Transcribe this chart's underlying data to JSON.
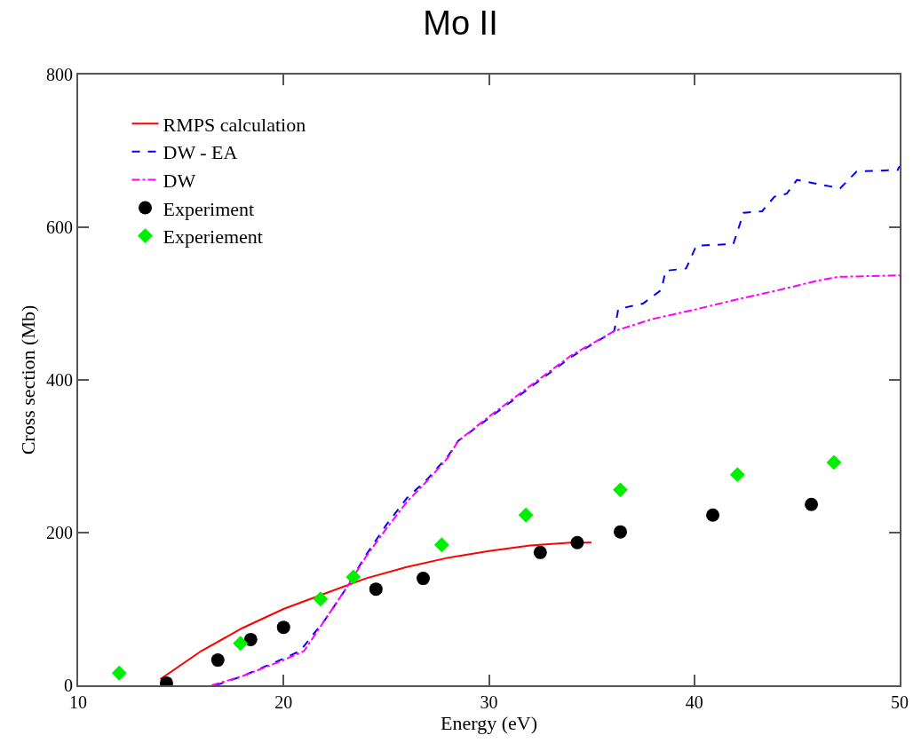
{
  "chart_data": {
    "type": "line",
    "title": "Mo II",
    "xlabel": "Energy (eV)",
    "ylabel": "Cross section (Mb)",
    "xlim": [
      10,
      50
    ],
    "xticks": [
      10,
      20,
      30,
      40,
      50
    ],
    "ylim": [
      0,
      800
    ],
    "yticks": [
      0,
      200,
      400,
      600,
      800
    ],
    "grid": false,
    "legend": "top left",
    "series": [
      {
        "name": "RMPS calculation",
        "color": "#ff0000",
        "line_style": "solid",
        "marker": "none",
        "x": [
          14,
          16,
          18,
          20,
          22,
          24,
          26,
          28,
          30,
          32,
          34,
          35
        ],
        "values": [
          8,
          45,
          75,
          100,
          120,
          140,
          155,
          167,
          176,
          183,
          187,
          187
        ]
      },
      {
        "name": "DW - EA",
        "color": "#0000ff",
        "line_style": "dashed",
        "marker": "none",
        "x": [
          16.7,
          18,
          20,
          20.8,
          22,
          23,
          24,
          25,
          26,
          27,
          28,
          28.5,
          30,
          32,
          34,
          36.1,
          36.3,
          37.5,
          37.8,
          38.4,
          38.6,
          39.6,
          40.1,
          41.9,
          42.4,
          43.3,
          43.9,
          44.5,
          45,
          47.1,
          47.9,
          49.9,
          50
        ],
        "values": [
          0,
          12,
          35,
          45,
          85,
          125,
          170,
          210,
          245,
          270,
          300,
          320,
          350,
          390,
          430,
          464,
          493,
          500,
          506,
          518,
          543,
          546,
          576,
          578,
          619,
          621,
          640,
          644,
          662,
          651,
          673,
          675,
          680
        ]
      },
      {
        "name": "DW",
        "color": "#ff00ff",
        "line_style": "dashdot",
        "marker": "none",
        "x": [
          16.5,
          18,
          20,
          21,
          22,
          23,
          24,
          25,
          26,
          27,
          28,
          28.5,
          30,
          32,
          34,
          36.1,
          38,
          40,
          42,
          44,
          46,
          47,
          50
        ],
        "values": [
          0,
          12,
          33,
          45,
          85,
          125,
          168,
          205,
          240,
          268,
          298,
          320,
          352,
          392,
          432,
          464,
          480,
          492,
          505,
          517,
          530,
          535,
          537
        ]
      },
      {
        "name": "Experiment",
        "type": "scatter",
        "color": "#000000",
        "marker": "circle",
        "x": [
          14.3,
          16.8,
          18.4,
          20.0,
          24.5,
          26.8,
          32.5,
          34.3,
          36.4,
          40.9,
          45.7
        ],
        "values": [
          3,
          33,
          60,
          76,
          126,
          140,
          174,
          187,
          201,
          223,
          237
        ]
      },
      {
        "name": "Experiement",
        "type": "scatter",
        "color": "#00ee00",
        "marker": "diamond",
        "x": [
          12.0,
          17.9,
          21.8,
          23.4,
          27.7,
          31.8,
          36.4,
          42.1,
          46.8
        ],
        "values": [
          16,
          55,
          113,
          142,
          184,
          223,
          256,
          276,
          292
        ]
      }
    ]
  }
}
